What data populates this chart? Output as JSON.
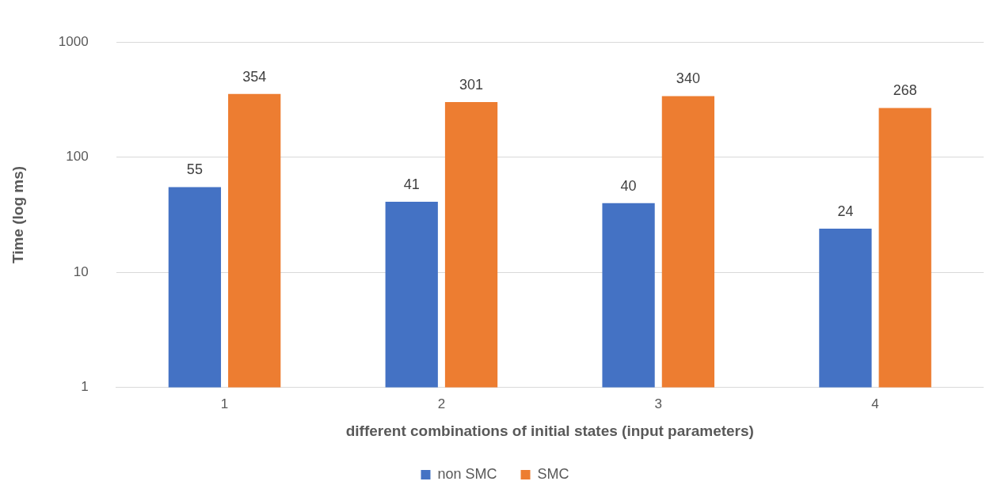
{
  "chart_data": {
    "type": "bar",
    "xlabel": "different combinations of initial states (input parameters)",
    "ylabel": "Time (log ms)",
    "categories": [
      "1",
      "2",
      "3",
      "4"
    ],
    "series": [
      {
        "name": "non SMC",
        "color": "#4472c4",
        "values": [
          55,
          41,
          40,
          24
        ]
      },
      {
        "name": "SMC",
        "color": "#ed7d31",
        "values": [
          354,
          301,
          340,
          268
        ]
      }
    ],
    "log": "y",
    "ylim": [
      1,
      1000
    ],
    "yticks": [
      1,
      10,
      100,
      1000
    ],
    "grid": "y",
    "legend": "bottom",
    "data_labels": true
  }
}
